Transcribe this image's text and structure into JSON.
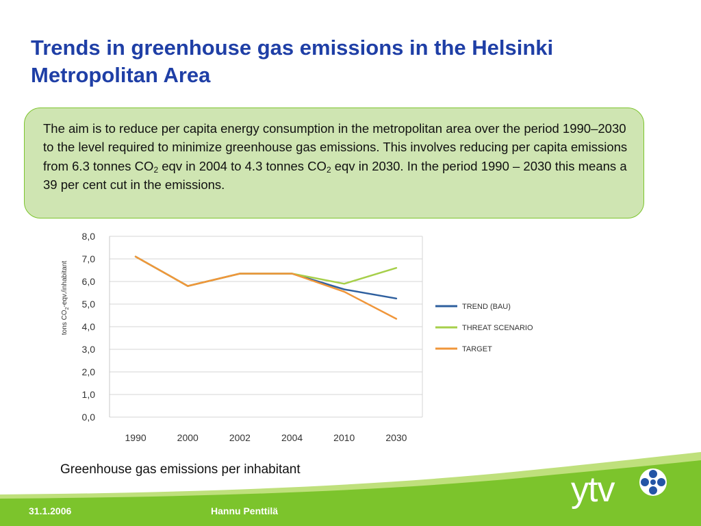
{
  "slide": {
    "title_line1": "Trends in greenhouse gas emissions in the Helsinki",
    "title_line2": "Metropolitan Area",
    "callout": {
      "part1": "The aim is to reduce per capita energy consumption in the metropolitan area over the period 1990–2030 to the level required to minimize greenhouse gas emissions. This involves reducing per capita emissions from 6.3 tonnes CO",
      "sub1": "2",
      "part2": " eqv in 2004 to 4.3 tonnes CO",
      "sub2": "2",
      "part3": " eqv in 2030. In the period 1990 – 2030 this means a 39 per cent cut in the emissions."
    },
    "caption": "Greenhouse gas emissions per inhabitant",
    "footer": {
      "date": "31.1.2006",
      "author": "Hannu Penttilä"
    },
    "logo": {
      "text": "ytv"
    }
  },
  "chart_data": {
    "type": "line",
    "categories": [
      "1990",
      "2000",
      "2002",
      "2004",
      "2010",
      "2030"
    ],
    "ylim": [
      0,
      8
    ],
    "yticks": [
      "0,0",
      "1,0",
      "2,0",
      "3,0",
      "4,0",
      "5,0",
      "6,0",
      "7,0",
      "8,0"
    ],
    "ylabel": {
      "before": "tons CO",
      "sub": "2",
      "after": "-eqv./inhabitant"
    },
    "xlabel": "",
    "grid": true,
    "legend_position": "right",
    "series": [
      {
        "name": "TREND (BAU)",
        "color": "#2e5f9e",
        "values": [
          7.1,
          5.8,
          6.35,
          6.35,
          5.65,
          5.25
        ]
      },
      {
        "name": "THREAT SCENARIO",
        "color": "#a6cf4a",
        "values": [
          7.1,
          5.8,
          6.35,
          6.35,
          5.9,
          6.6
        ]
      },
      {
        "name": "TARGET",
        "color": "#f0963a",
        "values": [
          7.1,
          5.8,
          6.35,
          6.35,
          5.55,
          4.35
        ]
      }
    ]
  },
  "colors": {
    "title": "#1f3fa6",
    "accent_green": "#7cc42c",
    "callout_bg": "#cfe5b2"
  }
}
